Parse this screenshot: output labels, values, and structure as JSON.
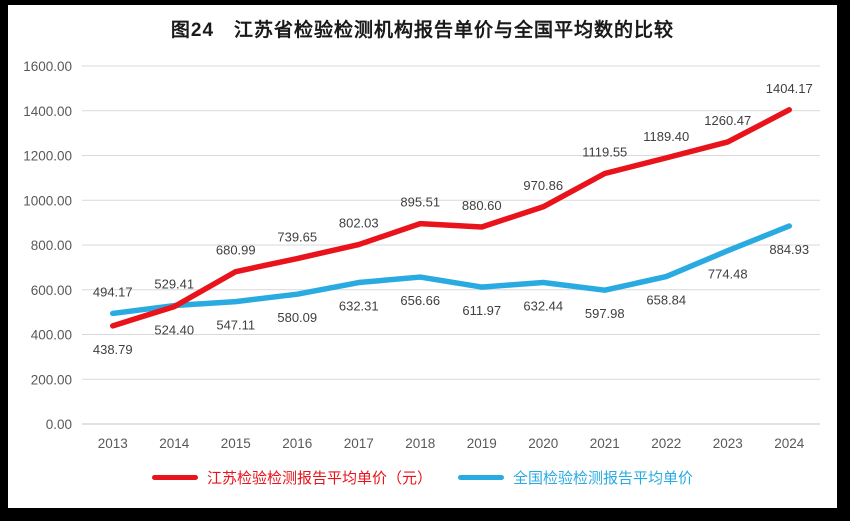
{
  "title": "图24　江苏省检验检测机构报告单价与全国平均数的比较",
  "colors": {
    "frame": "#000000",
    "page_background": "#ffffff",
    "gridline": "#d9d9d9",
    "axis_line": "#c6c6c6",
    "tick_text": "#595959",
    "data_label_text": "#404040",
    "series_red": "#e8131b",
    "series_blue": "#29abe2"
  },
  "legend": {
    "items": [
      {
        "label": "江苏检验检测报告平均单价（元）",
        "color": "#e8131b"
      },
      {
        "label": "全国检验检测报告平均单价",
        "color": "#29abe2"
      }
    ]
  },
  "chart_data": {
    "type": "line",
    "title": "图24　江苏省检验检测机构报告单价与全国平均数的比较",
    "categories": [
      "2013",
      "2014",
      "2015",
      "2016",
      "2017",
      "2018",
      "2019",
      "2020",
      "2021",
      "2022",
      "2023",
      "2024"
    ],
    "series": [
      {
        "name": "江苏检验检测报告平均单价（元）",
        "color": "#e8131b",
        "values": [
          438.79,
          524.4,
          680.99,
          739.65,
          802.03,
          895.51,
          880.6,
          970.86,
          1119.55,
          1189.4,
          1260.47,
          1404.17
        ],
        "label_positions": [
          "below",
          "below",
          "above",
          "above",
          "above",
          "above",
          "above",
          "above",
          "above",
          "above",
          "above",
          "above"
        ]
      },
      {
        "name": "全国检验检测报告平均单价",
        "color": "#29abe2",
        "values": [
          494.17,
          529.41,
          547.11,
          580.09,
          632.31,
          656.66,
          611.97,
          632.44,
          597.98,
          658.84,
          774.48,
          884.93
        ],
        "label_positions": [
          "above",
          "above",
          "below",
          "below",
          "below",
          "below",
          "below",
          "below",
          "below",
          "below",
          "below",
          "below"
        ]
      }
    ],
    "xlabel": "",
    "ylabel": "",
    "ylim": [
      0,
      1600
    ],
    "ytick_step": 200,
    "ytick_labels": [
      "0.00",
      "200.00",
      "400.00",
      "600.00",
      "800.00",
      "1000.00",
      "1200.00",
      "1400.00",
      "1600.00"
    ],
    "grid": true,
    "data_labels_decimals": 2,
    "legend_position": "bottom"
  }
}
